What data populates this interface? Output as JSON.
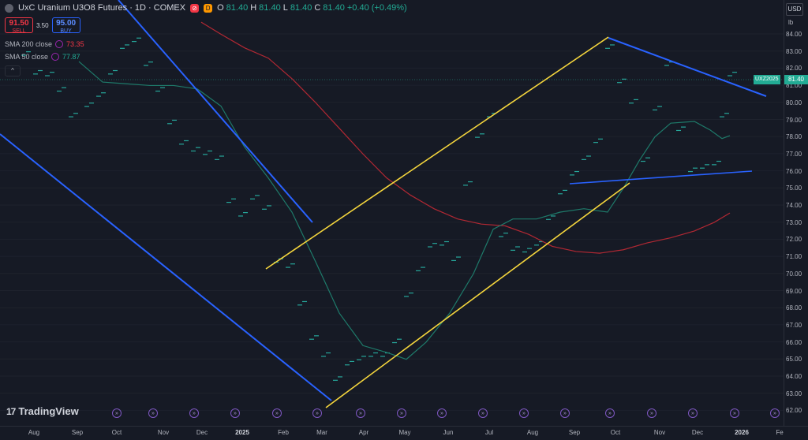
{
  "header": {
    "title": "UxC Uranium U3O8 Futures · 1D · COMEX",
    "badge_a": "⊘",
    "badge_b": "D",
    "ohlc": [
      {
        "k": "O",
        "v": "81.40"
      },
      {
        "k": "H",
        "v": "81.40"
      },
      {
        "k": "L",
        "v": "81.40"
      },
      {
        "k": "C",
        "v": "81.40 +0.40 (+0.49%)"
      }
    ]
  },
  "trade": {
    "sell_price": "91.50",
    "sell_label": "SELL",
    "spread": "3.50",
    "buy_price": "95.00",
    "buy_label": "BUY"
  },
  "indicators": [
    {
      "name": "SMA 200 close",
      "value": "73.35",
      "color": "#f23645"
    },
    {
      "name": "SMA 50 close",
      "value": "77.87",
      "color": "#22ab94"
    }
  ],
  "collapse_icon": "chevron-up-icon",
  "yaxis": {
    "currency": "USD",
    "unit": "lb",
    "ticks": [
      "84.00",
      "83.00",
      "82.00",
      "81.00",
      "80.00",
      "79.00",
      "78.00",
      "77.00",
      "76.00",
      "75.00",
      "74.00",
      "73.00",
      "72.00",
      "71.00",
      "70.00",
      "69.00",
      "68.00",
      "67.00",
      "66.00",
      "65.00",
      "64.00",
      "63.00",
      "62.00"
    ],
    "last_price": "81.40",
    "symbol_tag": "UXZ2025"
  },
  "xaxis": {
    "ticks": [
      {
        "label": "Aug",
        "bold": false
      },
      {
        "label": "Sep",
        "bold": false
      },
      {
        "label": "Oct",
        "bold": false
      },
      {
        "label": "Nov",
        "bold": false
      },
      {
        "label": "Dec",
        "bold": false
      },
      {
        "label": "2025",
        "bold": true
      },
      {
        "label": "Feb",
        "bold": false
      },
      {
        "label": "Mar",
        "bold": false
      },
      {
        "label": "Apr",
        "bold": false
      },
      {
        "label": "May",
        "bold": false
      },
      {
        "label": "Jun",
        "bold": false
      },
      {
        "label": "Jul",
        "bold": false
      },
      {
        "label": "Aug",
        "bold": false
      },
      {
        "label": "Sep",
        "bold": false
      },
      {
        "label": "Oct",
        "bold": false
      },
      {
        "label": "Nov",
        "bold": false
      },
      {
        "label": "Dec",
        "bold": false
      },
      {
        "label": "2026",
        "bold": true
      },
      {
        "label": "Fe",
        "bold": false
      }
    ]
  },
  "branding": {
    "logo_mark": "17",
    "name": "TradingView"
  },
  "event_marker": "»",
  "colors": {
    "background": "#161a25",
    "trendline_blue": "#2962ff",
    "trendline_yellow": "#f5d63d",
    "sma200": "#b22833",
    "sma50": "#1e7a6a",
    "price": "#26a69a"
  }
}
